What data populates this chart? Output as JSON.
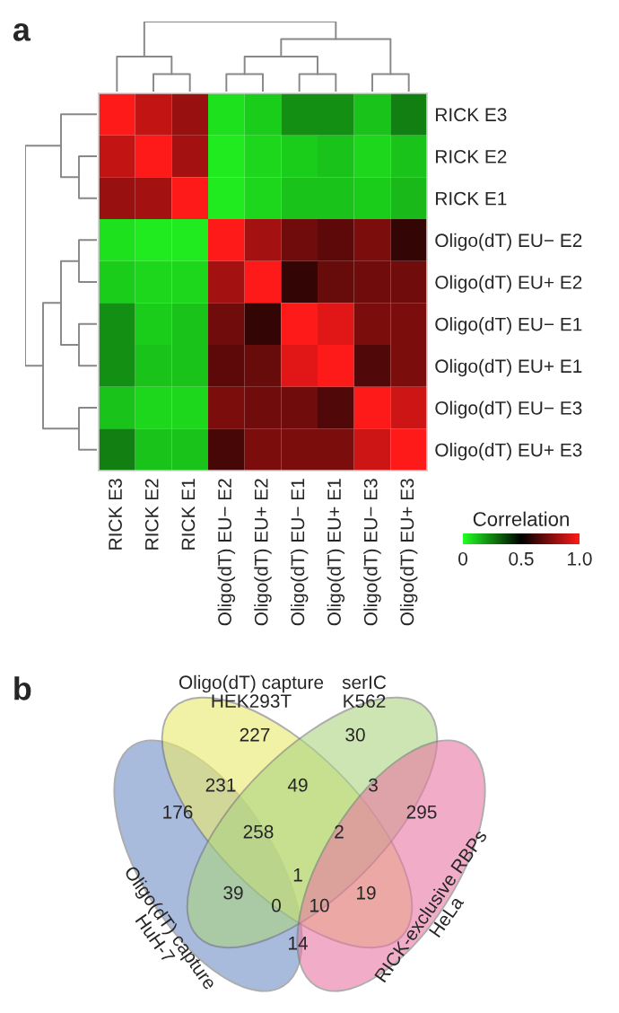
{
  "chart_data": [
    {
      "type": "heatmap",
      "title": "a",
      "clabel": "Correlation",
      "categories": [
        "RICK E3",
        "RICK E2",
        "RICK E1",
        "Oligo(dT) EU− E2",
        "Oligo(dT) EU+ E2",
        "Oligo(dT) EU− E1",
        "Oligo(dT) EU+ E1",
        "Oligo(dT) EU− E3",
        "Oligo(dT) EU+ E3"
      ],
      "y_categories": [
        "RICK E3",
        "RICK E2",
        "RICK E1",
        "Oligo(dT) EU− E2",
        "Oligo(dT) EU+ E2",
        "Oligo(dT) EU− E1",
        "Oligo(dT) EU+ E1",
        "Oligo(dT) EU− E3",
        "Oligo(dT) EU+ E3"
      ],
      "cells": [
        [
          1.0,
          0.88,
          0.8,
          0.06,
          0.1,
          0.22,
          0.22,
          0.12,
          0.25
        ],
        [
          0.88,
          1.0,
          0.82,
          0.04,
          0.08,
          0.1,
          0.12,
          0.08,
          0.12
        ],
        [
          0.8,
          0.82,
          1.0,
          0.04,
          0.08,
          0.12,
          0.12,
          0.1,
          0.14
        ],
        [
          0.06,
          0.04,
          0.04,
          1.0,
          0.82,
          0.72,
          0.68,
          0.74,
          0.6
        ],
        [
          0.1,
          0.08,
          0.08,
          0.82,
          1.0,
          0.6,
          0.7,
          0.72,
          0.72
        ],
        [
          0.22,
          0.1,
          0.12,
          0.72,
          0.6,
          1.0,
          0.94,
          0.74,
          0.74
        ],
        [
          0.22,
          0.12,
          0.12,
          0.68,
          0.7,
          0.94,
          1.0,
          0.66,
          0.74
        ],
        [
          0.12,
          0.08,
          0.08,
          0.74,
          0.72,
          0.72,
          0.66,
          1.0,
          0.9
        ],
        [
          0.25,
          0.12,
          0.12,
          0.64,
          0.74,
          0.74,
          0.74,
          0.9,
          1.0
        ]
      ],
      "clim": [
        0,
        1
      ],
      "cticks": [
        0,
        0.5,
        {
          "value": 1,
          "label": "1.0"
        }
      ]
    },
    {
      "type": "other",
      "title": "b",
      "annotations": [
        "Oligo(dT) capture\nHuH-7",
        "Oligo(dT) capture\nHEK293T",
        "serIC\nK562",
        "RICK-exclusive RBPs\nHeLa",
        "227",
        "30",
        "231",
        "49",
        "3",
        "176",
        "258",
        "2",
        "295",
        "1",
        "39",
        "19",
        "0",
        "10",
        "14"
      ]
    }
  ]
}
